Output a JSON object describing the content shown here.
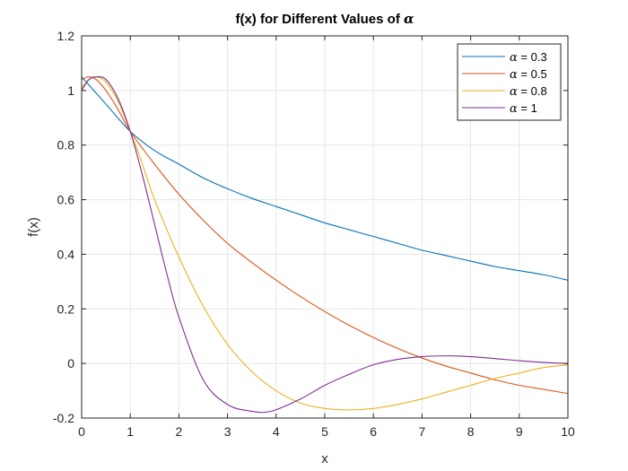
{
  "chart_data": {
    "type": "line",
    "title_prefix": "f(x) for Different Values of ",
    "title_symbol": "α",
    "xlabel": "x",
    "ylabel": "f(x)",
    "xlim": [
      0,
      10
    ],
    "ylim": [
      -0.2,
      1.2
    ],
    "xticks": [
      "0",
      "1",
      "2",
      "3",
      "4",
      "5",
      "6",
      "7",
      "8",
      "9",
      "10"
    ],
    "xtick_values": [
      0,
      1,
      2,
      3,
      4,
      5,
      6,
      7,
      8,
      9,
      10
    ],
    "yticks": [
      "-0.2",
      "0",
      "0.2",
      "0.4",
      "0.6",
      "0.8",
      "1",
      "1.2"
    ],
    "ytick_values": [
      -0.2,
      0,
      0.2,
      0.4,
      0.6,
      0.8,
      1.0,
      1.2
    ],
    "grid": true,
    "legend_position": "top-right",
    "series": [
      {
        "name": "α = 0.3",
        "legend_symbol": "α",
        "legend_value": " = 0.3",
        "color": "#0072BD",
        "x": [
          0,
          0.5,
          1,
          1.5,
          2,
          2.5,
          3,
          3.5,
          4,
          4.5,
          5,
          5.5,
          6,
          6.5,
          7,
          7.5,
          8,
          8.5,
          9,
          9.5,
          10
        ],
        "y": [
          1.05,
          0.95,
          0.85,
          0.78,
          0.73,
          0.68,
          0.64,
          0.605,
          0.575,
          0.545,
          0.515,
          0.49,
          0.465,
          0.44,
          0.415,
          0.395,
          0.375,
          0.355,
          0.34,
          0.325,
          0.305
        ]
      },
      {
        "name": "α = 0.5",
        "legend_symbol": "α",
        "legend_value": " = 0.5",
        "color": "#D95319",
        "x": [
          0,
          0.15,
          0.3,
          0.5,
          0.75,
          1,
          1.5,
          2,
          2.5,
          3,
          3.5,
          4,
          4.5,
          5,
          5.5,
          6,
          6.5,
          7,
          7.5,
          8,
          8.5,
          9,
          9.5,
          10
        ],
        "y": [
          1.04,
          1.05,
          1.04,
          1.0,
          0.93,
          0.85,
          0.73,
          0.62,
          0.525,
          0.44,
          0.37,
          0.305,
          0.245,
          0.19,
          0.14,
          0.095,
          0.055,
          0.02,
          -0.01,
          -0.035,
          -0.06,
          -0.08,
          -0.095,
          -0.11
        ]
      },
      {
        "name": "α = 0.8",
        "legend_symbol": "α",
        "legend_value": " = 0.8",
        "color": "#EDB120",
        "x": [
          0,
          0.15,
          0.3,
          0.5,
          0.75,
          1,
          1.25,
          1.5,
          2,
          2.5,
          3,
          3.5,
          4,
          4.5,
          5,
          5.5,
          6,
          6.5,
          7,
          7.5,
          8,
          8.5,
          9,
          9.5,
          10
        ],
        "y": [
          1.01,
          1.04,
          1.05,
          1.03,
          0.96,
          0.85,
          0.73,
          0.6,
          0.39,
          0.21,
          0.07,
          -0.03,
          -0.1,
          -0.145,
          -0.165,
          -0.17,
          -0.165,
          -0.15,
          -0.13,
          -0.105,
          -0.08,
          -0.055,
          -0.035,
          -0.015,
          -0.005
        ]
      },
      {
        "name": "α = 1",
        "legend_symbol": "α",
        "legend_value": " = 1",
        "color": "#7E2F8E",
        "x": [
          0,
          0.15,
          0.3,
          0.5,
          0.75,
          1,
          1.25,
          1.5,
          1.75,
          2,
          2.5,
          3,
          3.5,
          3.9,
          4.5,
          5,
          5.5,
          6,
          6.5,
          7,
          7.5,
          8,
          8.5,
          9,
          9.5,
          10
        ],
        "y": [
          1.0,
          1.04,
          1.05,
          1.04,
          0.97,
          0.85,
          0.69,
          0.51,
          0.33,
          0.17,
          -0.06,
          -0.15,
          -0.175,
          -0.175,
          -0.13,
          -0.08,
          -0.04,
          -0.005,
          0.015,
          0.025,
          0.028,
          0.025,
          0.018,
          0.01,
          0.004,
          0.0
        ]
      }
    ]
  }
}
